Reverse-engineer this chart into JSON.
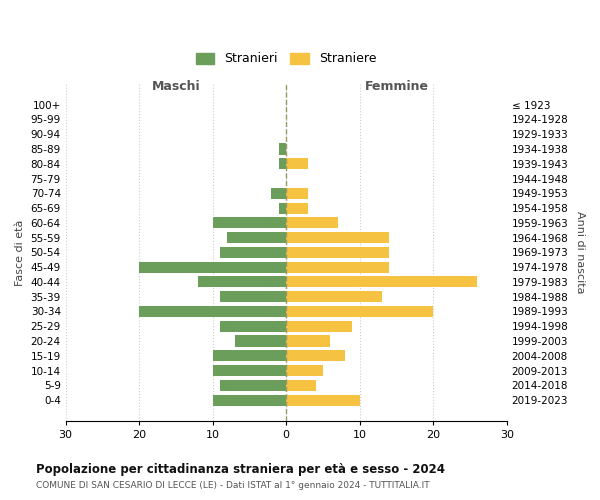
{
  "age_groups": [
    "100+",
    "95-99",
    "90-94",
    "85-89",
    "80-84",
    "75-79",
    "70-74",
    "65-69",
    "60-64",
    "55-59",
    "50-54",
    "45-49",
    "40-44",
    "35-39",
    "30-34",
    "25-29",
    "20-24",
    "15-19",
    "10-14",
    "5-9",
    "0-4"
  ],
  "birth_years": [
    "≤ 1923",
    "1924-1928",
    "1929-1933",
    "1934-1938",
    "1939-1943",
    "1944-1948",
    "1949-1953",
    "1954-1958",
    "1959-1963",
    "1964-1968",
    "1969-1973",
    "1974-1978",
    "1979-1983",
    "1984-1988",
    "1989-1993",
    "1994-1998",
    "1999-2003",
    "2004-2008",
    "2009-2013",
    "2014-2018",
    "2019-2023"
  ],
  "males": [
    0,
    0,
    0,
    1,
    1,
    0,
    2,
    1,
    10,
    8,
    9,
    20,
    12,
    9,
    20,
    9,
    7,
    10,
    10,
    9,
    10
  ],
  "females": [
    0,
    0,
    0,
    0,
    3,
    0,
    3,
    3,
    7,
    14,
    14,
    14,
    26,
    13,
    20,
    9,
    6,
    8,
    5,
    4,
    10
  ],
  "male_color": "#6a9e5a",
  "female_color": "#f5c242",
  "background_color": "#ffffff",
  "grid_color": "#cccccc",
  "center_line_color": "#999966",
  "xlim": 30,
  "title": "Popolazione per cittadinanza straniera per età e sesso - 2024",
  "subtitle": "COMUNE DI SAN CESARIO DI LECCE (LE) - Dati ISTAT al 1° gennaio 2024 - TUTTITALIA.IT",
  "xlabel_left": "Maschi",
  "xlabel_right": "Femmine",
  "ylabel_left": "Fasce di età",
  "ylabel_right": "Anni di nascita",
  "legend_male": "Stranieri",
  "legend_female": "Straniere",
  "xticks": [
    -30,
    -20,
    -10,
    0,
    10,
    20,
    30
  ],
  "xtick_labels": [
    "30",
    "20",
    "10",
    "0",
    "10",
    "20",
    "30"
  ]
}
